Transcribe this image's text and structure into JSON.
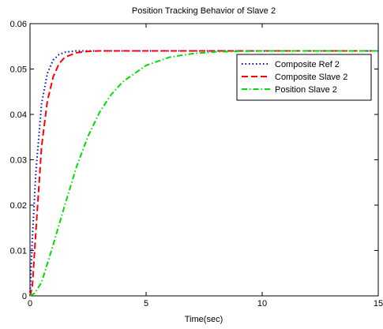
{
  "chart_data": {
    "type": "line",
    "title": "Position Tracking Behavior of Slave 2",
    "xlabel": "Time(sec)",
    "ylabel": "",
    "xlim": [
      0,
      15
    ],
    "ylim": [
      0,
      0.06
    ],
    "xticks": [
      "0",
      "5",
      "10",
      "15"
    ],
    "yticks": [
      "0",
      "0.01",
      "0.02",
      "0.03",
      "0.04",
      "0.05",
      "0.06"
    ],
    "grid": false,
    "legend_position": "top-right",
    "series": [
      {
        "name": "Composite Ref 2",
        "color": "#0000cc",
        "style": "dotted",
        "x": [
          0,
          0.1,
          0.25,
          0.5,
          0.75,
          1.0,
          1.25,
          1.5,
          2.0,
          2.5,
          3.0,
          4.0,
          5.0,
          7.0,
          10.0,
          15.0
        ],
        "y": [
          0,
          0.0126,
          0.0271,
          0.0424,
          0.0491,
          0.052,
          0.0532,
          0.0537,
          0.054,
          0.054,
          0.054,
          0.054,
          0.054,
          0.054,
          0.054,
          0.054
        ]
      },
      {
        "name": "Composite Slave 2",
        "color": "#ff0000",
        "style": "dashed",
        "x": [
          0,
          0.1,
          0.25,
          0.5,
          0.75,
          1.0,
          1.25,
          1.5,
          2.0,
          2.5,
          3.0,
          4.0,
          5.0,
          7.0,
          10.0,
          15.0
        ],
        "y": [
          0,
          0.002,
          0.014,
          0.033,
          0.043,
          0.0483,
          0.0512,
          0.0526,
          0.0536,
          0.0539,
          0.054,
          0.054,
          0.054,
          0.054,
          0.054,
          0.054
        ]
      },
      {
        "name": "Position Slave 2",
        "color": "#00dd00",
        "style": "dashdot",
        "x": [
          0,
          0.2,
          0.5,
          1.0,
          1.5,
          2.0,
          2.5,
          3.0,
          3.5,
          4.0,
          5.0,
          6.0,
          7.0,
          8.0,
          10.0,
          15.0
        ],
        "y": [
          0,
          0.0006,
          0.003,
          0.0113,
          0.02,
          0.0284,
          0.0352,
          0.0405,
          0.0444,
          0.0472,
          0.0508,
          0.0526,
          0.0534,
          0.0538,
          0.054,
          0.054
        ]
      }
    ]
  }
}
